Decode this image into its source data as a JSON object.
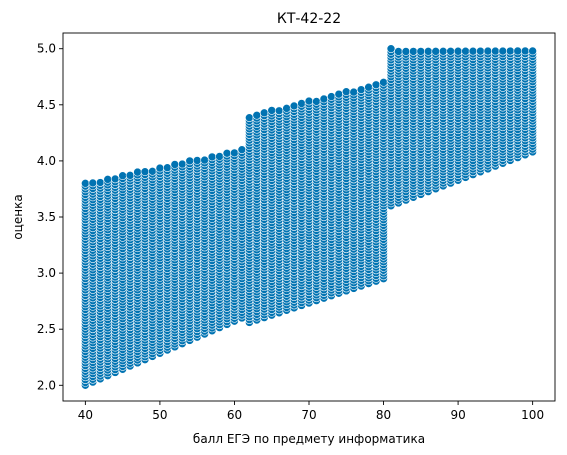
{
  "chart_data": {
    "type": "scatter",
    "title": "КТ-42-22",
    "xlabel": "балл ЕГЭ по предмету информатика",
    "ylabel": "оценка",
    "xlim": [
      37,
      103
    ],
    "ylim": [
      1.86,
      5.14
    ],
    "xticks": [
      40,
      50,
      60,
      70,
      80,
      90,
      100
    ],
    "yticks": [
      2.0,
      2.5,
      3.0,
      3.5,
      4.0,
      4.5,
      5.0
    ],
    "grid": false,
    "marker_color": "#0173b2",
    "marker_edge_color": "#ffffff",
    "y_step": 0.025,
    "bands": [
      {
        "x_from": 40,
        "x_to": 61,
        "y_low_at_start": 2.0,
        "y_low_at_end": 2.6,
        "y_high_at_start": 3.8,
        "y_high_at_end": 4.1
      },
      {
        "x_from": 62,
        "x_to": 80,
        "y_low_at_start": 2.56,
        "y_low_at_end": 2.95,
        "y_high_at_start": 4.4,
        "y_high_at_end": 4.7
      },
      {
        "x_from": 81,
        "x_to": 100,
        "y_low_at_start": 3.6,
        "y_low_at_end": 4.08,
        "y_high_at_start": 5.0,
        "y_high_at_end": 5.0
      }
    ]
  }
}
